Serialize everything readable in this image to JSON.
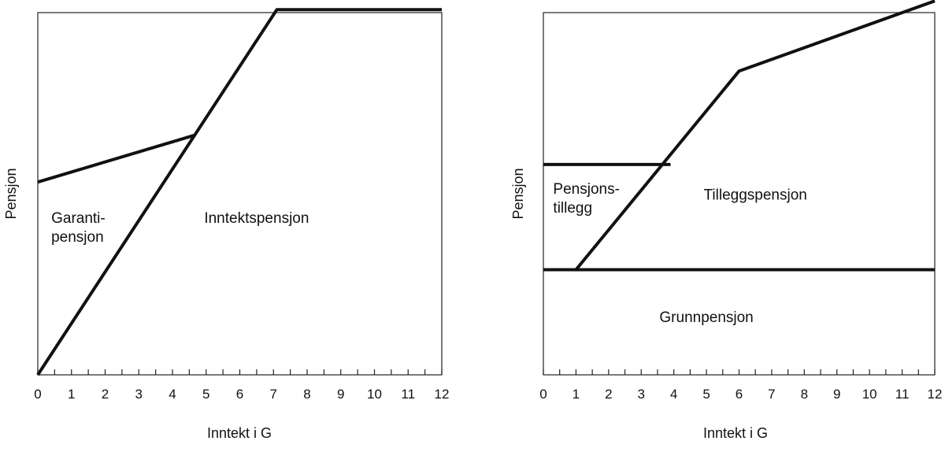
{
  "chart_data": [
    {
      "type": "line",
      "title": "",
      "xlabel": "Inntekt i G",
      "ylabel": "Pensjon",
      "xlim": [
        0,
        12
      ],
      "ylim": [
        0,
        6.2
      ],
      "xticks": [
        "0",
        "1",
        "2",
        "3",
        "4",
        "5",
        "6",
        "7",
        "8",
        "9",
        "10",
        "11",
        "12"
      ],
      "grid": false,
      "legend": "none",
      "series": [
        {
          "x": [
            0,
            4.65
          ],
          "y": [
            3.3,
            4.1
          ]
        },
        {
          "x": [
            0,
            7.1,
            12
          ],
          "y": [
            0,
            6.25,
            6.25
          ]
        }
      ],
      "annotations": [
        {
          "lines": [
            "Garanti-",
            "pensjon"
          ],
          "x": 0.4,
          "y": 2.6
        },
        {
          "lines": [
            "Inntektspensjon"
          ],
          "x": 6.5,
          "y": 2.6
        }
      ]
    },
    {
      "type": "line",
      "title": "",
      "xlabel": "Inntekt i G",
      "ylabel": "Pensjon",
      "xlim": [
        0,
        12
      ],
      "ylim": [
        0,
        6.2
      ],
      "xticks": [
        "0",
        "1",
        "2",
        "3",
        "4",
        "5",
        "6",
        "7",
        "8",
        "9",
        "10",
        "11",
        "12"
      ],
      "grid": false,
      "legend": "none",
      "series": [
        {
          "x": [
            0,
            12
          ],
          "y": [
            1.8,
            1.8
          ]
        },
        {
          "x": [
            0,
            3.9
          ],
          "y": [
            3.6,
            3.6
          ]
        },
        {
          "x": [
            1,
            6,
            12
          ],
          "y": [
            1.8,
            5.2,
            6.4
          ]
        }
      ],
      "annotations": [
        {
          "lines": [
            "Pensjons-",
            "tillegg"
          ],
          "x": 0.3,
          "y": 3.1
        },
        {
          "lines": [
            "Tilleggspensjon"
          ],
          "x": 6.5,
          "y": 3.0
        },
        {
          "lines": [
            "Grunnpensjon"
          ],
          "x": 5.0,
          "y": 0.9
        }
      ]
    }
  ]
}
